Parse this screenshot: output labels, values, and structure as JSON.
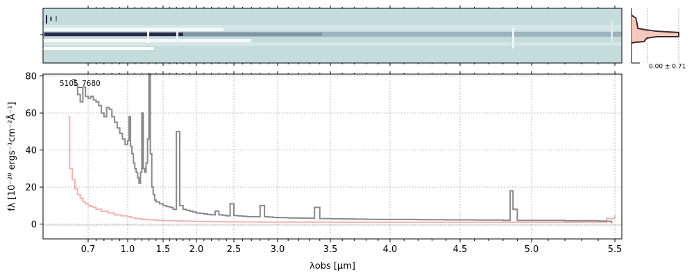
{
  "chart_data": [
    {
      "type": "heatmap",
      "panel": "2d-spectrum",
      "colormap": [
        "#c5dcdc",
        "#ffffff",
        "#1a1a3a"
      ],
      "background_color": "#c5dcdc"
    },
    {
      "type": "line",
      "panel": "1d-spectrum",
      "object_label": "5105_7680",
      "xlabel": "λobs [μm]",
      "ylabel": "fλ [10⁻²⁰ ergs⁻¹cm⁻²Å⁻¹]",
      "x_tick_labels": [
        "0.7",
        "1.0",
        "1.5",
        "2.0",
        "2.5",
        "3.0",
        "3.5",
        "4.0",
        "4.5",
        "5.0",
        "5.5"
      ],
      "x_tick_values": [
        0.7,
        1.0,
        1.5,
        2.0,
        2.5,
        3.0,
        3.5,
        4.0,
        4.5,
        5.0,
        5.5
      ],
      "y_tick_labels": [
        "0",
        "20",
        "40",
        "60",
        "80"
      ],
      "y_tick_values": [
        0,
        20,
        40,
        60,
        80
      ],
      "xlim": [
        0.53,
        5.53
      ],
      "ylim": [
        -8,
        81
      ],
      "grid": true,
      "series": [
        {
          "role": "flux",
          "color": "#888888",
          "x": [
            0.58,
            0.6,
            0.62,
            0.64,
            0.66,
            0.68,
            0.7,
            0.72,
            0.74,
            0.76,
            0.78,
            0.8,
            0.82,
            0.84,
            0.86,
            0.88,
            0.9,
            0.92,
            0.94,
            0.96,
            0.98,
            1.0,
            1.02,
            1.04,
            1.06,
            1.08,
            1.1,
            1.12,
            1.14,
            1.16,
            1.18,
            1.2,
            1.22,
            1.24,
            1.26,
            1.28,
            1.3,
            1.32,
            1.34,
            1.36,
            1.38,
            1.4,
            1.45,
            1.5,
            1.55,
            1.6,
            1.65,
            1.7,
            1.75,
            1.8,
            1.85,
            1.9,
            1.95,
            2.0,
            2.05,
            2.1,
            2.15,
            2.2,
            2.25,
            2.3,
            2.35,
            2.4,
            2.45,
            2.5,
            2.55,
            2.6,
            2.65,
            2.7,
            2.75,
            2.8,
            2.85,
            2.9,
            2.95,
            3.0,
            3.1,
            3.2,
            3.3,
            3.35,
            3.4,
            3.5,
            3.6,
            3.7,
            3.8,
            3.9,
            4.0,
            4.2,
            4.4,
            4.6,
            4.8,
            4.82,
            4.85,
            4.87,
            4.9,
            5.0,
            5.2,
            5.4,
            5.45,
            5.48
          ],
          "y": [
            78,
            75,
            70,
            66,
            74,
            69,
            68,
            69,
            67,
            66,
            64,
            60,
            58,
            63,
            62,
            58,
            55,
            52,
            49,
            46,
            43,
            45,
            58,
            42,
            38,
            33,
            30,
            28,
            25,
            22,
            28,
            60,
            30,
            28,
            33,
            46,
            82,
            38,
            20,
            16,
            13,
            12,
            11,
            10,
            9.5,
            9,
            8,
            50,
            10,
            8,
            7.5,
            7,
            6.5,
            6,
            5.8,
            5.5,
            5.2,
            5,
            7,
            5,
            4.8,
            4.5,
            11,
            4.6,
            4.4,
            4.2,
            4,
            4,
            4,
            10,
            4,
            3.8,
            3.6,
            3.5,
            3.3,
            3.2,
            3.1,
            9,
            3,
            2.9,
            2.8,
            2.7,
            2.6,
            2.5,
            2.5,
            2.4,
            2.3,
            2.2,
            2,
            2,
            18,
            8,
            2,
            2,
            1.8,
            1.6,
            1.5,
            0.5
          ]
        },
        {
          "role": "error",
          "color": "#f4b0b0",
          "x": [
            0.55,
            0.56,
            0.58,
            0.6,
            0.62,
            0.64,
            0.66,
            0.68,
            0.7,
            0.72,
            0.74,
            0.76,
            0.8,
            0.85,
            0.9,
            0.95,
            1.0,
            1.05,
            1.1,
            1.2,
            1.3,
            1.4,
            1.5,
            1.6,
            1.7,
            1.8,
            1.9,
            2.0,
            2.2,
            2.4,
            2.6,
            2.8,
            3.0,
            3.5,
            4.0,
            4.5,
            5.0,
            5.3,
            5.45,
            5.5
          ],
          "y": [
            58,
            30,
            24,
            19,
            16,
            14,
            12,
            11,
            10,
            9.5,
            9,
            8,
            7,
            6,
            5,
            4.5,
            4,
            3.5,
            3,
            2.6,
            2.3,
            2,
            1.9,
            1.8,
            1.7,
            1.6,
            1.5,
            1.4,
            1.3,
            1.2,
            1.15,
            1.1,
            1.05,
            1.0,
            1.0,
            1.0,
            1.0,
            1.1,
            3,
            5
          ]
        }
      ]
    },
    {
      "type": "line",
      "panel": "profile",
      "stat_label": "0.00 ± 0.71"
    }
  ]
}
